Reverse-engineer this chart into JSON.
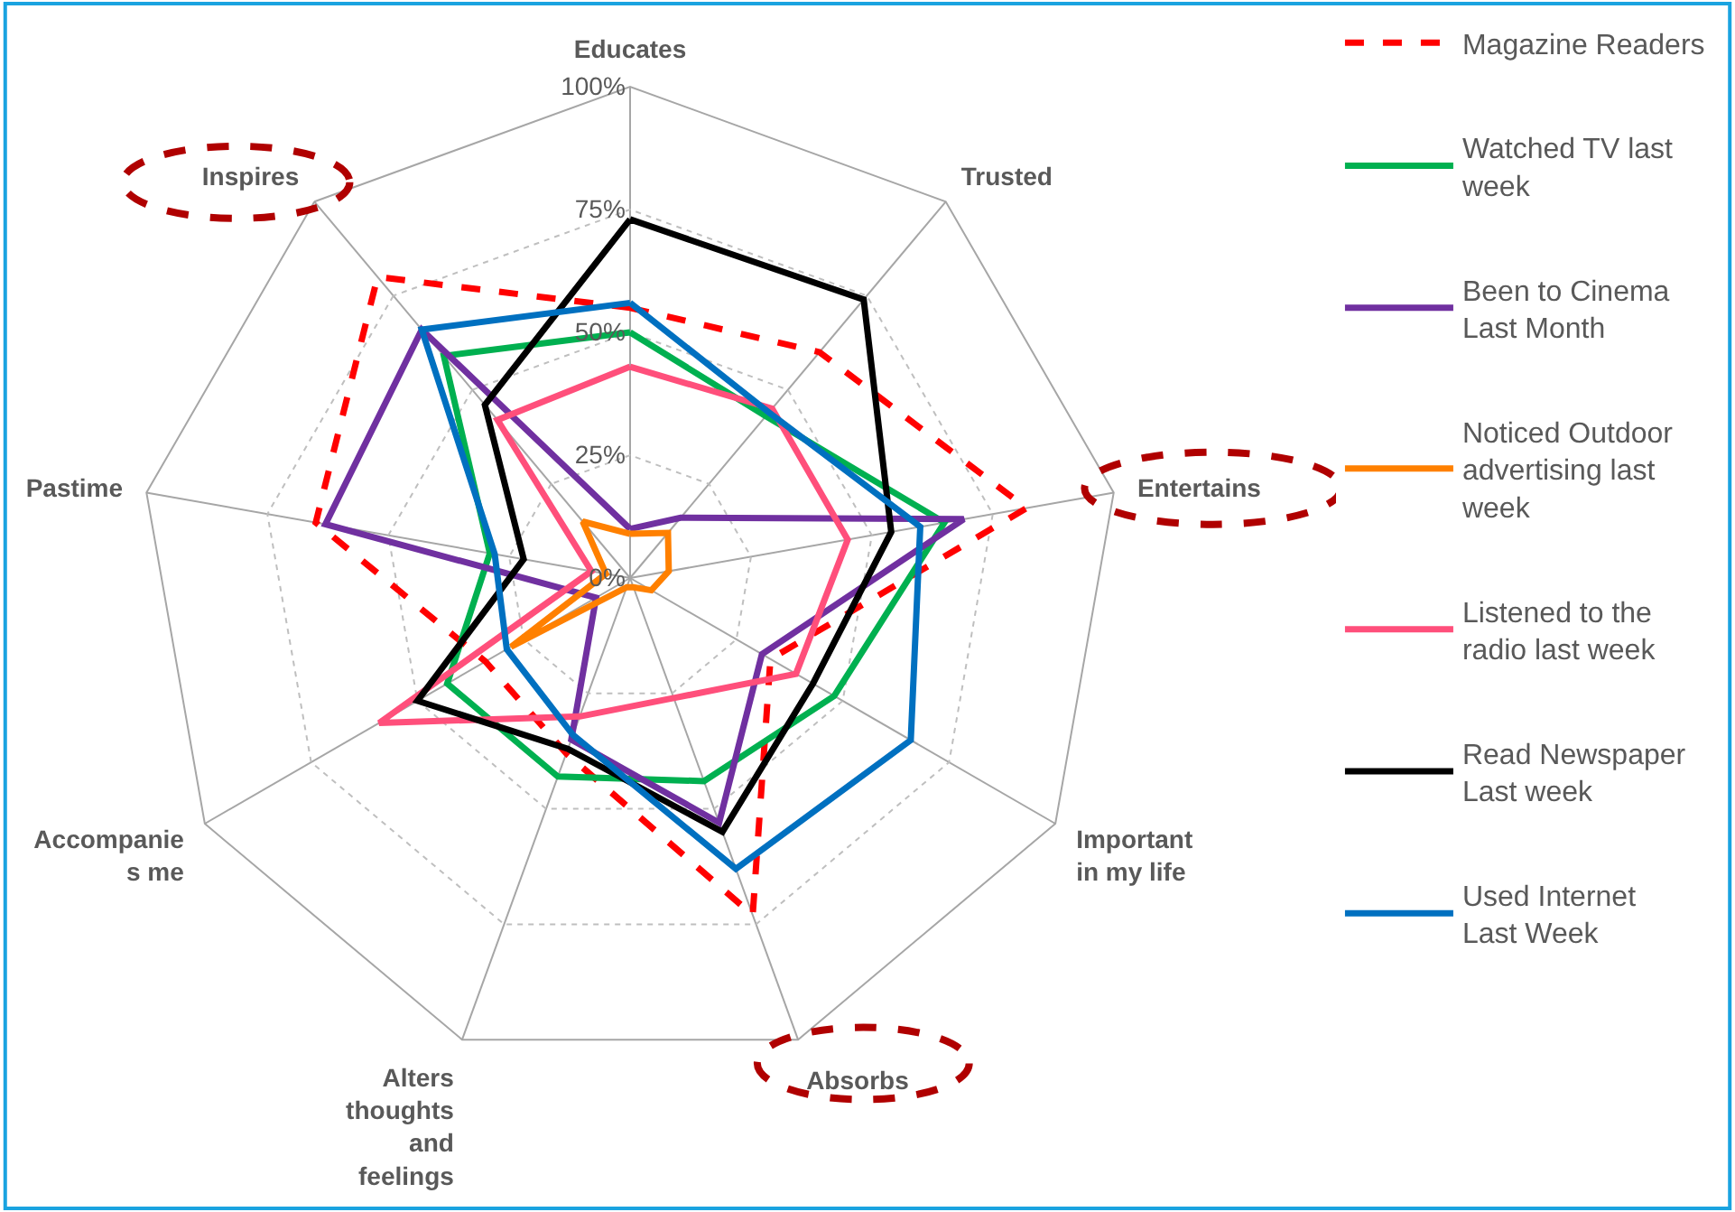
{
  "chart_data": {
    "type": "radar",
    "categories": [
      "Educates",
      "Trusted",
      "Entertains",
      "Important in my life",
      "Absorbs",
      "Alters thoughts and feelings",
      "Accompanies me",
      "Pastime",
      "Inspires"
    ],
    "ylim": [
      0,
      100
    ],
    "yticks": [
      {
        "value": 0,
        "label": "0%"
      },
      {
        "value": 25,
        "label": "25%"
      },
      {
        "value": 50,
        "label": "50%"
      },
      {
        "value": 75,
        "label": "75%"
      },
      {
        "value": 100,
        "label": "100%"
      }
    ],
    "grid": true,
    "legend": "right",
    "series": [
      {
        "name": "Magazine Readers",
        "color": "#ff0000",
        "line_style": "dashed",
        "values": [
          55,
          60,
          82,
          33,
          73,
          38,
          34,
          65,
          80
        ]
      },
      {
        "name": "Watched TV last week",
        "color": "#00b050",
        "values": [
          50,
          43,
          65,
          48,
          44,
          43,
          43,
          29,
          59
        ]
      },
      {
        "name": "Been to Cinema Last Month",
        "color": "#7030a0",
        "values": [
          10,
          16,
          69,
          31,
          53,
          35,
          8,
          63,
          66
        ]
      },
      {
        "name": "Noticed Outdoor advertising last week",
        "color": "#ff8000",
        "values": [
          9,
          12,
          8,
          5,
          2,
          2,
          28,
          5,
          15
        ]
      },
      {
        "name": "Listened to the radio last week",
        "color": "#ff4f7b",
        "values": [
          43,
          45,
          45,
          39,
          26,
          30,
          59,
          8,
          42
        ]
      },
      {
        "name": "Read Newspaper Last week",
        "color": "#000000",
        "values": [
          73,
          74,
          54,
          43,
          55,
          37,
          50,
          22,
          46
        ]
      },
      {
        "name": "Used Internet Last Week",
        "color": "#0070c0",
        "values": [
          56,
          44,
          60,
          66,
          63,
          34,
          29,
          28,
          66
        ]
      }
    ]
  }
}
